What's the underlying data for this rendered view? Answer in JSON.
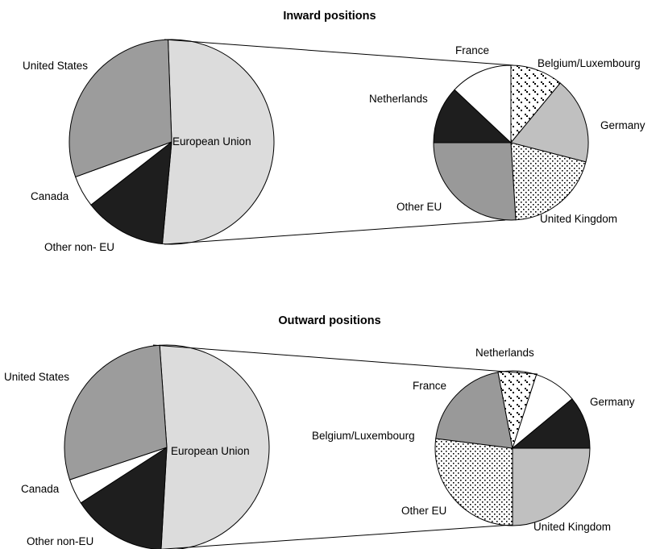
{
  "colors": {
    "european_union": "#dcdcdc",
    "united_states": "#9c9c9c",
    "canada": "#ffffff",
    "other_non_eu": "#1e1e1e",
    "france": "#ffffff",
    "belgium_luxembourg": "pattern-dashes",
    "germany": "#c0c0c0",
    "united_kingdom": "pattern-dots",
    "other_eu": "#999999",
    "netherlands": "#1e1e1e"
  },
  "chart_data": [
    {
      "type": "pie",
      "title": "Inward positions",
      "slices": [
        {
          "label": "European Union",
          "value": 52
        },
        {
          "label": "Other non- EU",
          "value": 13
        },
        {
          "label": "Canada",
          "value": 5
        },
        {
          "label": "United States",
          "value": 30
        }
      ],
      "exploded": {
        "of": "European Union",
        "type": "pie",
        "slices": [
          {
            "label": "Belgium/Luxembourg",
            "value": 11
          },
          {
            "label": "Germany",
            "value": 18
          },
          {
            "label": "United Kingdom",
            "value": 20
          },
          {
            "label": "Other EU",
            "value": 26
          },
          {
            "label": "Netherlands",
            "value": 12
          },
          {
            "label": "France",
            "value": 13
          }
        ]
      }
    },
    {
      "type": "pie",
      "title": "Outward positions",
      "slices": [
        {
          "label": "European Union",
          "value": 52
        },
        {
          "label": "Other non-EU",
          "value": 15
        },
        {
          "label": "Canada",
          "value": 4
        },
        {
          "label": "United States",
          "value": 29
        }
      ],
      "exploded": {
        "of": "European Union",
        "type": "pie",
        "slices": [
          {
            "label": "Germany",
            "value": 25
          },
          {
            "label": "United Kingdom",
            "value": 27
          },
          {
            "label": "Other EU",
            "value": 20
          },
          {
            "label": "Belgium/Luxembourg",
            "value": 8
          },
          {
            "label": "France",
            "value": 9
          },
          {
            "label": "Netherlands",
            "value": 11
          }
        ]
      }
    }
  ]
}
